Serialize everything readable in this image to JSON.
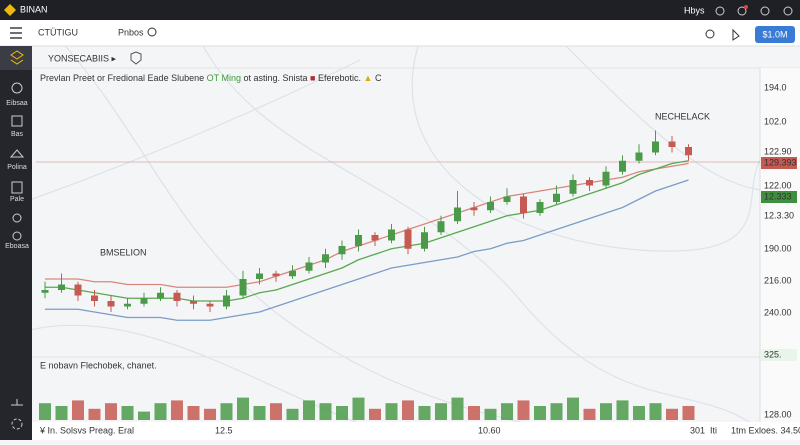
{
  "header": {
    "brand": "BINAN",
    "user": "Hbys"
  },
  "toolbar": {
    "symbol": "CTÜTIGU",
    "indicators": "Pnbos",
    "balance": "$1.0M",
    "interval": "YONSECABIIS ▸"
  },
  "sidebar": [
    "Eibsaa",
    "Bas",
    "Polina",
    "Pale",
    "Eboasa"
  ],
  "legend": {
    "part1": "Prevlan Preet or Fredional Eade Slubene",
    "part2": "OT Ming",
    "part3": "ot asting. Snista",
    "part4": "Eferebotic.",
    "part5": "C"
  },
  "chart_data": {
    "type": "candlestick",
    "annotations": [
      "BMSELION",
      "NECHELACK"
    ],
    "ylim": [
      0,
      100
    ],
    "up_color": "#4a9a4a",
    "down_color": "#c45a52",
    "open": [
      19,
      20,
      22,
      18,
      16,
      14,
      15,
      17,
      19,
      16,
      15,
      14,
      18,
      24,
      26,
      25,
      27,
      30,
      33,
      36,
      40,
      38,
      42,
      35,
      41,
      45,
      50,
      49,
      52,
      54,
      48,
      52,
      55,
      60,
      58,
      63,
      67,
      70,
      74,
      72
    ],
    "high": [
      23,
      26,
      23,
      20,
      18,
      17,
      19,
      21,
      20,
      18,
      16,
      20,
      27,
      28,
      27,
      29,
      32,
      35,
      38,
      42,
      41,
      44,
      43,
      43,
      47,
      56,
      52,
      54,
      57,
      55,
      53,
      58,
      62,
      61,
      65,
      69,
      73,
      78,
      76,
      73
    ],
    "low": [
      17,
      19,
      16,
      14,
      12,
      13,
      14,
      16,
      14,
      13,
      12,
      13,
      17,
      22,
      23,
      24,
      26,
      28,
      31,
      34,
      36,
      37,
      33,
      34,
      40,
      44,
      47,
      48,
      51,
      46,
      47,
      51,
      54,
      56,
      57,
      62,
      66,
      69,
      70,
      67
    ],
    "close": [
      20,
      22,
      18,
      16,
      14,
      15,
      17,
      19,
      16,
      15,
      14,
      18,
      24,
      26,
      25,
      27,
      30,
      33,
      36,
      40,
      38,
      42,
      35,
      41,
      45,
      50,
      49,
      52,
      54,
      48,
      52,
      55,
      60,
      58,
      63,
      67,
      70,
      74,
      72,
      69
    ],
    "moving_averages": [
      {
        "color": "#d9877f",
        "values": [
          24,
          24,
          24,
          23,
          23,
          22,
          22,
          22,
          21,
          21,
          21,
          21,
          22,
          23,
          25,
          27,
          29,
          31,
          34,
          36,
          38,
          40,
          42,
          44,
          46,
          48,
          50,
          52,
          54,
          55,
          56,
          57,
          58,
          59,
          60,
          61,
          63,
          64,
          65,
          66
        ]
      },
      {
        "color": "#5aa84f",
        "values": [
          21,
          21,
          20,
          19,
          18,
          17,
          17,
          17,
          17,
          16,
          16,
          16,
          17,
          19,
          20,
          22,
          24,
          26,
          28,
          31,
          33,
          35,
          36,
          37,
          39,
          41,
          43,
          45,
          47,
          48,
          49,
          51,
          53,
          55,
          57,
          59,
          62,
          64,
          66,
          67
        ]
      },
      {
        "color": "#7a9cc8",
        "values": [
          13,
          13,
          13,
          12,
          11,
          10,
          10,
          10,
          9,
          9,
          9,
          10,
          11,
          12,
          14,
          16,
          18,
          20,
          22,
          24,
          26,
          28,
          29,
          30,
          31,
          32,
          34,
          35,
          37,
          38,
          40,
          42,
          44,
          46,
          48,
          50,
          53,
          56,
          58,
          60
        ]
      }
    ],
    "volume": {
      "label": "E nobavn Flechobek, chanet.",
      "ylim": [
        0,
        10
      ],
      "values": [
        6,
        5,
        7,
        4,
        6,
        5,
        3,
        6,
        7,
        5,
        4,
        6,
        8,
        5,
        6,
        4,
        7,
        6,
        5,
        8,
        4,
        6,
        7,
        5,
        6,
        8,
        5,
        4,
        6,
        7,
        5,
        6,
        8,
        4,
        6,
        7,
        5,
        6,
        4,
        5
      ]
    },
    "price_labels": [
      "194.0",
      "102.0",
      "122.90",
      "129.393",
      "122.00",
      "12.333",
      "12.3.30",
      "190.00",
      "216.00",
      "240.00",
      "325.",
      "128.00"
    ],
    "x_labels": [
      "12.5",
      "10.60",
      "301",
      "Iti",
      "1tm Exloes. 34.50"
    ]
  },
  "footer": "¥ In. Solsvs Preag. Eral"
}
